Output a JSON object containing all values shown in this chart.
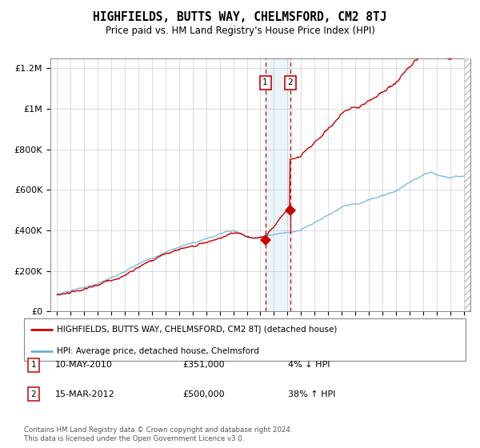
{
  "title": "HIGHFIELDS, BUTTS WAY, CHELMSFORD, CM2 8TJ",
  "subtitle": "Price paid vs. HM Land Registry's House Price Index (HPI)",
  "legend_line1": "HIGHFIELDS, BUTTS WAY, CHELMSFORD, CM2 8TJ (detached house)",
  "legend_line2": "HPI: Average price, detached house, Chelmsford",
  "transaction1_date": "10-MAY-2010",
  "transaction1_price": 351000,
  "transaction1_hpi": "4% ↓ HPI",
  "transaction1_year": 2010.36,
  "transaction2_date": "15-MAR-2012",
  "transaction2_price": 500000,
  "transaction2_hpi": "38% ↑ HPI",
  "transaction2_year": 2012.21,
  "hpi_color": "#6baed6",
  "price_color": "#cc0000",
  "footnote": "Contains HM Land Registry data © Crown copyright and database right 2024.\nThis data is licensed under the Open Government Licence v3.0.",
  "ylim": [
    0,
    1250000
  ],
  "yticks": [
    0,
    200000,
    400000,
    600000,
    800000,
    1000000,
    1200000
  ],
  "ytick_labels": [
    "£0",
    "£200K",
    "£400K",
    "£600K",
    "£800K",
    "£1M",
    "£1.2M"
  ],
  "background_color": "#ffffff",
  "grid_color": "#cccccc"
}
